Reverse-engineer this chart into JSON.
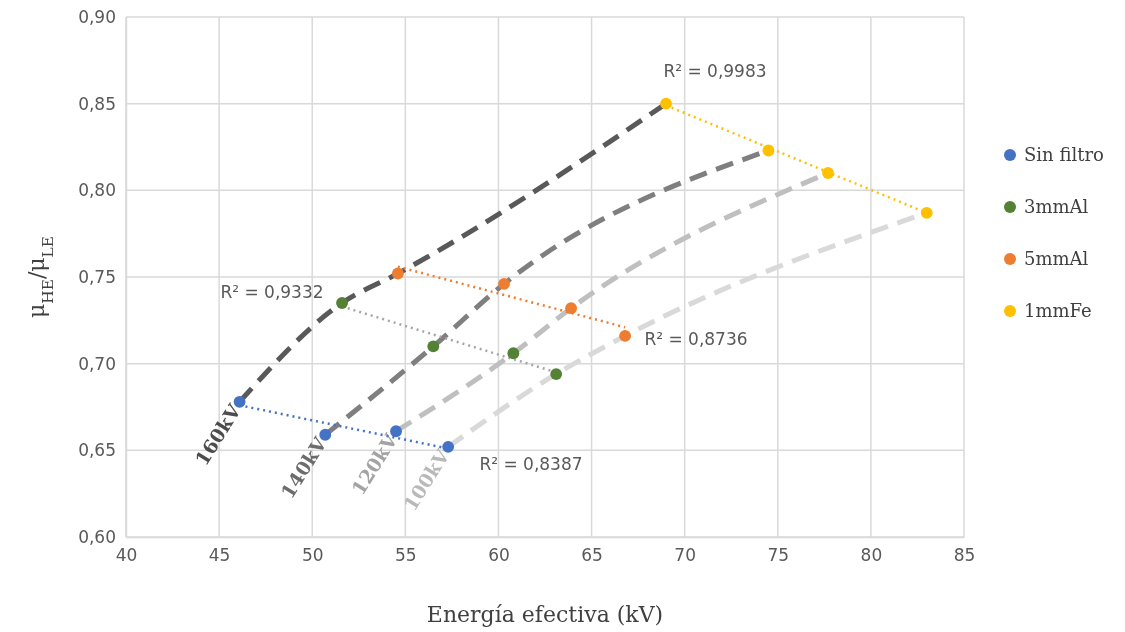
{
  "chart_data": {
    "type": "scatter",
    "xlabel": "Energía efectiva (kV)",
    "ylabel": "μ$_{HE}$/μ$_{LE}$",
    "xlim": [
      40,
      85
    ],
    "xticks": [
      40,
      45,
      50,
      55,
      60,
      65,
      70,
      75,
      80,
      85
    ],
    "ylim": [
      0.6,
      0.9
    ],
    "yticks": [
      {
        "value": 0.6,
        "label": "0,60"
      },
      {
        "value": 0.65,
        "label": "0,65"
      },
      {
        "value": 0.7,
        "label": "0,70"
      },
      {
        "value": 0.75,
        "label": "0,75"
      },
      {
        "value": 0.8,
        "label": "0,80"
      },
      {
        "value": 0.85,
        "label": "0,85"
      },
      {
        "value": 0.9,
        "label": "0,90"
      }
    ],
    "grid": true,
    "legend": "right",
    "marker": "circle",
    "series": [
      {
        "type": "line",
        "name": "160kV",
        "color": "#595959",
        "line_style": "dashed",
        "marker": "none",
        "x": [
          46.1,
          51.6,
          54.6,
          69.0
        ],
        "values": [
          0.678,
          0.735,
          0.752,
          0.85
        ]
      },
      {
        "type": "line",
        "name": "140kV",
        "color": "#7f7f7f",
        "line_style": "dashed",
        "marker": "none",
        "x": [
          50.7,
          56.5,
          60.3,
          74.5
        ],
        "values": [
          0.659,
          0.71,
          0.746,
          0.823
        ]
      },
      {
        "type": "line",
        "name": "120kV",
        "color": "#bfbfbf",
        "line_style": "dashed",
        "marker": "none",
        "x": [
          54.5,
          60.8,
          63.9,
          77.7
        ],
        "values": [
          0.661,
          0.706,
          0.732,
          0.81
        ]
      },
      {
        "type": "line",
        "name": "100kV",
        "color": "#d9d9d9",
        "line_style": "dashed",
        "marker": "none",
        "x": [
          57.3,
          63.1,
          66.8,
          83.0
        ],
        "values": [
          0.652,
          0.694,
          0.716,
          0.787
        ]
      },
      {
        "type": "line",
        "color": "#4472c4",
        "line_style": "dotted",
        "marker": "none",
        "x": [
          46.1,
          57.3
        ],
        "values": [
          0.676,
          0.651
        ]
      },
      {
        "type": "line",
        "color": "#a5a5a5",
        "line_style": "dotted",
        "marker": "none",
        "x": [
          51.6,
          63.1
        ],
        "values": [
          0.733,
          0.695
        ]
      },
      {
        "type": "line",
        "color": "#ed7d31",
        "line_style": "dotted",
        "marker": "none",
        "x": [
          54.6,
          66.8
        ],
        "values": [
          0.756,
          0.721
        ]
      },
      {
        "type": "line",
        "color": "#ffc000",
        "line_style": "dotted",
        "marker": "none",
        "x": [
          69.0,
          83.0
        ],
        "values": [
          0.849,
          0.787
        ]
      },
      {
        "name": "Sin filtro",
        "color": "#4472c4",
        "x": [
          46.1,
          50.7,
          54.5,
          57.3
        ],
        "values": [
          0.678,
          0.659,
          0.661,
          0.652
        ]
      },
      {
        "name": "3mmAl",
        "color": "#548235",
        "x": [
          51.6,
          56.5,
          60.8,
          63.1
        ],
        "values": [
          0.735,
          0.71,
          0.706,
          0.694
        ]
      },
      {
        "name": "5mmAl",
        "color": "#ed7d31",
        "x": [
          54.6,
          60.3,
          63.9,
          66.8
        ],
        "values": [
          0.752,
          0.746,
          0.732,
          0.716
        ]
      },
      {
        "name": "1mmFe",
        "color": "#ffc000",
        "x": [
          69.0,
          74.5,
          77.7,
          83.0
        ],
        "values": [
          0.85,
          0.823,
          0.81,
          0.787
        ]
      }
    ],
    "annotations": [
      "R² = 0,9983",
      "R² = 0,9332",
      "R² = 0,8736",
      "R² = 0,8387"
    ]
  }
}
